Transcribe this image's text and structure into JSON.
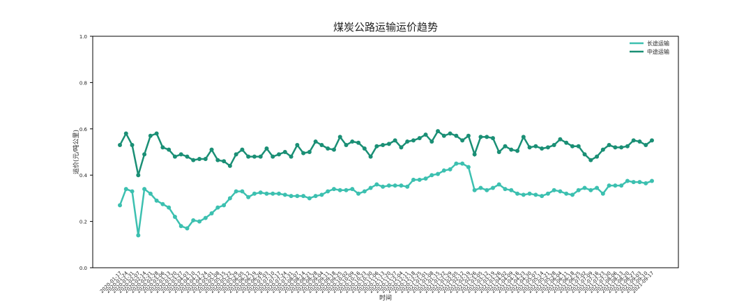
{
  "chart_data": {
    "type": "line",
    "title": "煤炭公路运输运价趋势",
    "x_label": "时间",
    "y_label": "运价(元/吨公里)",
    "categories": [
      "2020-01-17",
      "2020-01-24",
      "2020-01-31",
      "2020-02-07",
      "2020-02-14",
      "2020-02-21",
      "2020-02-28",
      "2020-03-06",
      "2020-03-13",
      "2020-03-20",
      "2020-03-27",
      "2020-04-03",
      "2020-04-10",
      "2020-04-17",
      "2020-04-24",
      "2020-05-01",
      "2020-05-08",
      "2020-05-15",
      "2020-05-22",
      "2020-05-29",
      "2020-06-05",
      "2020-06-12",
      "2020-06-19",
      "2020-06-26",
      "2020-07-03",
      "2020-07-10",
      "2020-07-17",
      "2020-07-24",
      "2020-07-31",
      "2020-08-07",
      "2020-08-14",
      "2020-08-21",
      "2020-08-28",
      "2020-09-04",
      "2020-09-11",
      "2020-09-18",
      "2020-09-25",
      "2020-10-02",
      "2020-10-09",
      "2020-10-16",
      "2020-10-23",
      "2020-10-30",
      "2020-11-06",
      "2020-11-13",
      "2020-11-20",
      "2020-11-27",
      "2020-12-04",
      "2020-12-11",
      "2020-12-18",
      "2020-12-25",
      "2021-01-01",
      "2021-01-08",
      "2021-01-15",
      "2021-01-22",
      "2021-01-29",
      "2021-02-05",
      "2021-02-12",
      "2021-02-19",
      "2021-02-26",
      "2021-03-05",
      "2021-03-12",
      "2021-03-19",
      "2021-03-26",
      "2021-04-02",
      "2021-04-09",
      "2021-04-16",
      "2021-04-23",
      "2021-04-30",
      "2021-05-07",
      "2021-05-14",
      "2021-05-21",
      "2021-05-28",
      "2021-06-04",
      "2021-06-11",
      "2021-06-18",
      "2021-06-25",
      "2021-07-02",
      "2021-07-09",
      "2021-07-16",
      "2021-07-23",
      "2021-07-30",
      "2021-08-06",
      "2021-08-13",
      "2021-08-20",
      "2021-08-27",
      "2021-09-03",
      "2021-09-10",
      "2021-09-17"
    ],
    "series": [
      {
        "name": "长途运输",
        "color": "#3cc0b0",
        "values": [
          0.27,
          0.34,
          0.33,
          0.14,
          0.34,
          0.32,
          0.29,
          0.275,
          0.26,
          0.22,
          0.18,
          0.17,
          0.205,
          0.2,
          0.215,
          0.235,
          0.26,
          0.27,
          0.3,
          0.33,
          0.33,
          0.305,
          0.32,
          0.325,
          0.32,
          0.32,
          0.32,
          0.315,
          0.31,
          0.31,
          0.31,
          0.3,
          0.31,
          0.315,
          0.33,
          0.34,
          0.335,
          0.335,
          0.34,
          0.32,
          0.33,
          0.345,
          0.36,
          0.35,
          0.355,
          0.355,
          0.355,
          0.35,
          0.38,
          0.38,
          0.385,
          0.4,
          0.405,
          0.42,
          0.425,
          0.45,
          0.45,
          0.435,
          0.335,
          0.345,
          0.335,
          0.345,
          0.36,
          0.34,
          0.335,
          0.32,
          0.315,
          0.32,
          0.315,
          0.31,
          0.32,
          0.335,
          0.33,
          0.32,
          0.315,
          0.335,
          0.345,
          0.335,
          0.345,
          0.32,
          0.355,
          0.355,
          0.355,
          0.375,
          0.37,
          0.37,
          0.365,
          0.375
        ]
      },
      {
        "name": "中途运输",
        "color": "#1a8f75",
        "values": [
          0.53,
          0.58,
          0.53,
          0.4,
          0.49,
          0.57,
          0.58,
          0.52,
          0.51,
          0.48,
          0.49,
          0.48,
          0.465,
          0.47,
          0.47,
          0.51,
          0.465,
          0.46,
          0.44,
          0.49,
          0.51,
          0.48,
          0.48,
          0.48,
          0.515,
          0.48,
          0.49,
          0.5,
          0.48,
          0.53,
          0.495,
          0.5,
          0.545,
          0.53,
          0.515,
          0.51,
          0.565,
          0.53,
          0.545,
          0.54,
          0.515,
          0.48,
          0.525,
          0.53,
          0.535,
          0.55,
          0.52,
          0.545,
          0.55,
          0.56,
          0.575,
          0.545,
          0.59,
          0.57,
          0.58,
          0.57,
          0.55,
          0.57,
          0.49,
          0.565,
          0.565,
          0.56,
          0.5,
          0.525,
          0.51,
          0.505,
          0.565,
          0.52,
          0.525,
          0.515,
          0.52,
          0.53,
          0.555,
          0.54,
          0.525,
          0.525,
          0.49,
          0.465,
          0.48,
          0.51,
          0.53,
          0.52,
          0.52,
          0.525,
          0.55,
          0.545,
          0.53,
          0.55
        ]
      }
    ],
    "ylim": [
      0,
      1
    ],
    "yticks": [
      {
        "value": 0,
        "label": "0.0"
      },
      0.2,
      0.4,
      0.6,
      0.8,
      {
        "value": 1,
        "label": "1.0"
      }
    ],
    "legend": "upper right"
  }
}
